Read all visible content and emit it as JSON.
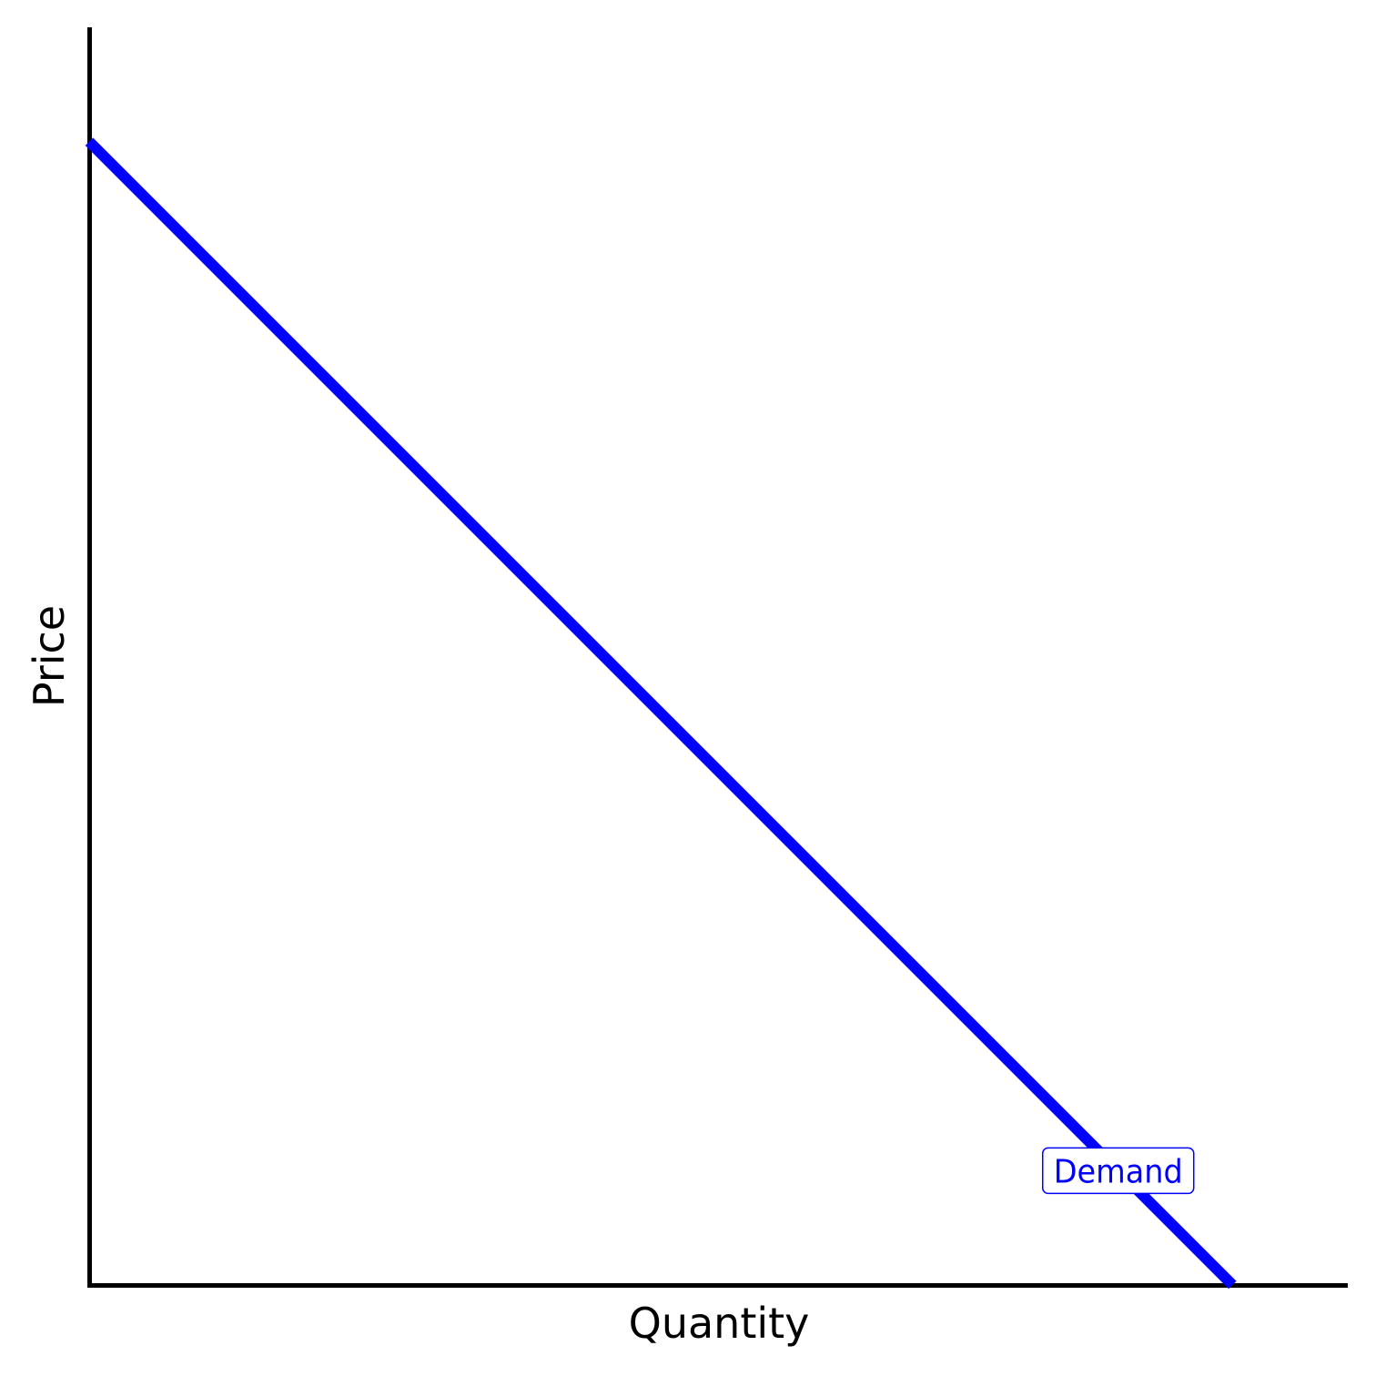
{
  "chart_data": {
    "type": "line",
    "title": "",
    "xlabel": "Quantity",
    "ylabel": "Price",
    "xlim": [
      0,
      11
    ],
    "ylim": [
      0,
      11
    ],
    "grid": false,
    "ticks": false,
    "series": [
      {
        "name": "Demand",
        "color": "#0000ff",
        "x": [
          0,
          10
        ],
        "y": [
          10,
          0
        ]
      }
    ],
    "annotations": [
      {
        "text": "Demand",
        "x": 9,
        "y": 1,
        "color": "#0000ff",
        "boxed": true
      }
    ]
  }
}
